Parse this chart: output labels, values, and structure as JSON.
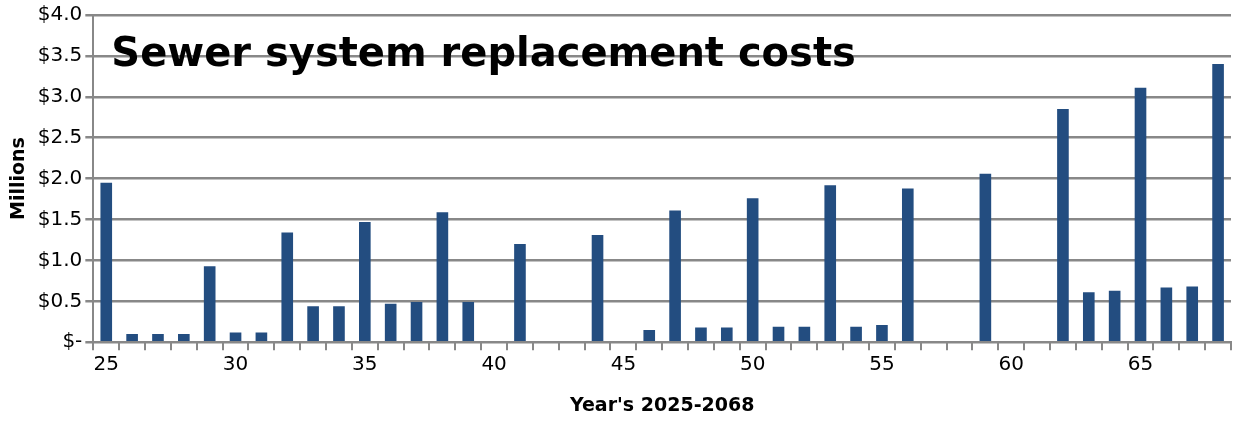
{
  "chart_data": {
    "type": "bar",
    "title": "Sewer system replacement costs",
    "xlabel": "Year's 2025-2068",
    "ylabel": "Millions",
    "categories": [
      "25",
      null,
      null,
      null,
      null,
      "30",
      null,
      null,
      null,
      null,
      "35",
      null,
      null,
      null,
      null,
      "40",
      null,
      null,
      null,
      null,
      "45",
      null,
      null,
      null,
      null,
      "50",
      null,
      null,
      null,
      null,
      "55",
      null,
      null,
      null,
      null,
      "60",
      null,
      null,
      null,
      null,
      "65",
      null,
      null,
      null
    ],
    "values": [
      1.95,
      0.1,
      0.1,
      0.1,
      0.93,
      0.12,
      0.12,
      1.34,
      0.44,
      0.44,
      1.47,
      0.47,
      0.49,
      1.59,
      0.49,
      0,
      1.2,
      0,
      0,
      1.31,
      0,
      0.15,
      1.61,
      0.18,
      0.18,
      1.76,
      0.19,
      0.19,
      1.92,
      0.19,
      0.21,
      1.88,
      0,
      0,
      2.06,
      0,
      0,
      2.85,
      0.61,
      0.63,
      3.11,
      0.67,
      0.68,
      3.4
    ],
    "color": "#234d80",
    "ylim": [
      0,
      4
    ],
    "yticks": [
      {
        "value": 0,
        "label": "$-"
      },
      {
        "value": 0.5,
        "label": "$0.5"
      },
      {
        "value": 1,
        "label": "$1.0"
      },
      {
        "value": 1.5,
        "label": "$1.5"
      },
      {
        "value": 2,
        "label": "$2.0"
      },
      {
        "value": 2.5,
        "label": "$2.5"
      },
      {
        "value": 3,
        "label": "$3.0"
      },
      {
        "value": 3.5,
        "label": "$3.5"
      },
      {
        "value": 4,
        "label": "$4.0"
      }
    ],
    "grid": "y",
    "legend": false
  }
}
